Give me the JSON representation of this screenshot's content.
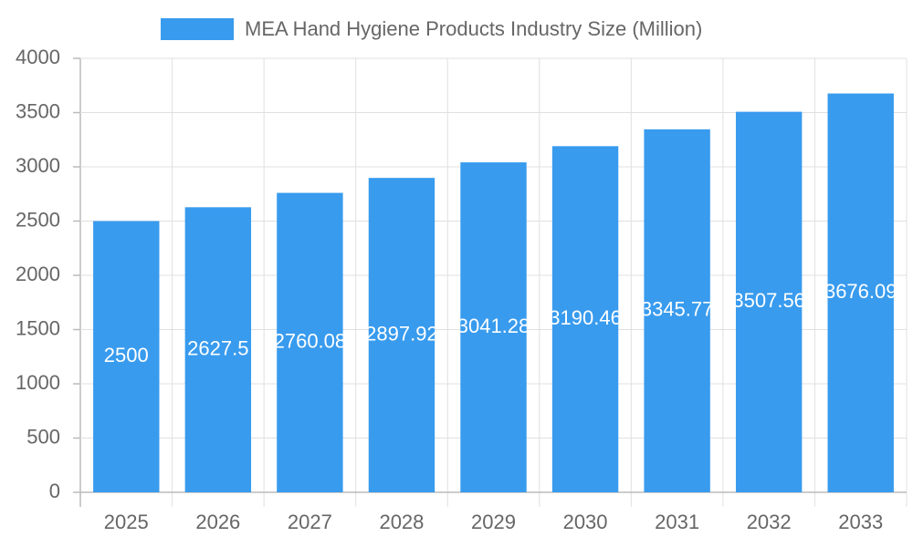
{
  "chart_data": {
    "type": "bar",
    "categories": [
      "2025",
      "2026",
      "2027",
      "2028",
      "2029",
      "2030",
      "2031",
      "2032",
      "2033"
    ],
    "series": [
      {
        "name": "MEA Hand Hygiene Products Industry Size (Million)",
        "color": "#389bee",
        "values": [
          2500,
          2627.5,
          2760.08,
          2897.92,
          3041.28,
          3190.46,
          3345.77,
          3507.56,
          3676.09
        ]
      }
    ],
    "ylim": [
      0,
      4000
    ],
    "yticks": [
      0,
      500,
      1000,
      1500,
      2000,
      2500,
      3000,
      3500,
      4000
    ],
    "grid": true,
    "legend": "top"
  }
}
